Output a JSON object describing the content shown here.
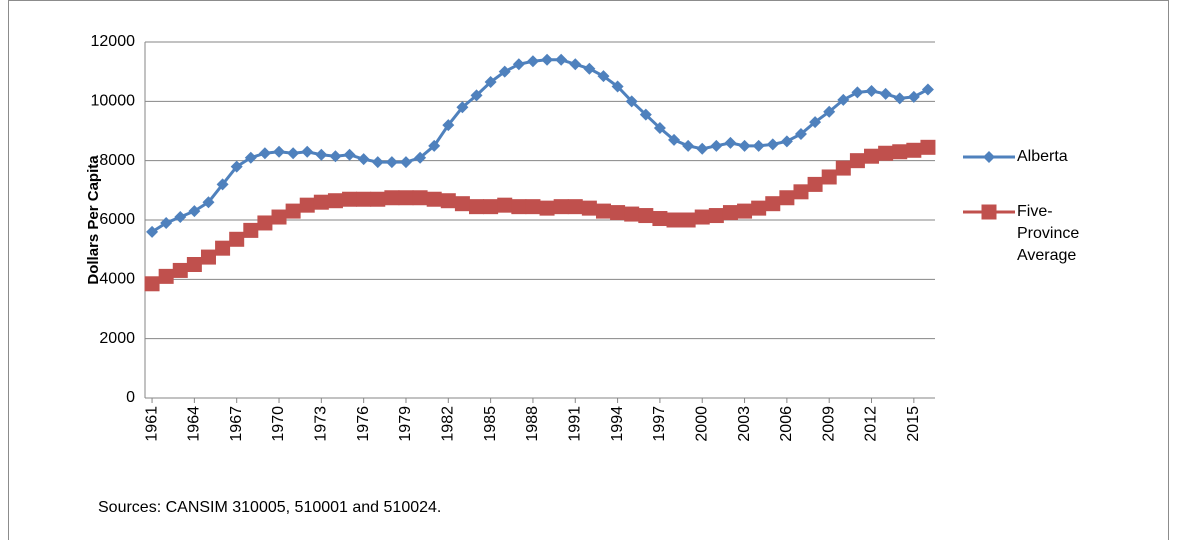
{
  "chart_data": {
    "type": "line",
    "y_label": "Dollars Per Capita",
    "note": "Sources: CANSIM 310005, 510001 and 510024.",
    "x": [
      1961,
      1962,
      1963,
      1964,
      1965,
      1966,
      1967,
      1968,
      1969,
      1970,
      1971,
      1972,
      1973,
      1974,
      1975,
      1976,
      1977,
      1978,
      1979,
      1980,
      1981,
      1982,
      1983,
      1984,
      1985,
      1986,
      1987,
      1988,
      1989,
      1990,
      1991,
      1992,
      1993,
      1994,
      1995,
      1996,
      1997,
      1998,
      1999,
      2000,
      2001,
      2002,
      2003,
      2004,
      2005,
      2006,
      2007,
      2008,
      2009,
      2010,
      2011,
      2012,
      2013,
      2014,
      2015,
      2016
    ],
    "xlim": [
      1960.5,
      2016.5
    ],
    "xticks": [
      1961,
      1964,
      1967,
      1970,
      1973,
      1976,
      1979,
      1982,
      1985,
      1988,
      1991,
      1994,
      1997,
      2000,
      2003,
      2006,
      2009,
      2012,
      2015
    ],
    "ylim": [
      0,
      12000
    ],
    "yticks": [
      0,
      2000,
      4000,
      6000,
      8000,
      10000,
      12000
    ],
    "grid": true,
    "legend": "right",
    "series": [
      {
        "name": "Alberta",
        "color": "#4f81bd",
        "marker": "diamond",
        "values": [
          5600,
          5900,
          6100,
          6300,
          6600,
          7200,
          7800,
          8100,
          8250,
          8300,
          8250,
          8300,
          8200,
          8150,
          8200,
          8050,
          7950,
          7950,
          7950,
          8100,
          8500,
          9200,
          9800,
          10200,
          10650,
          11000,
          11250,
          11350,
          11400,
          11400,
          11250,
          11100,
          10850,
          10500,
          10000,
          9550,
          9100,
          8700,
          8500,
          8400,
          8500,
          8600,
          8500,
          8500,
          8550,
          8650,
          8900,
          9300,
          9650,
          10050,
          10300,
          10350,
          10250,
          10100,
          10150,
          10400
        ]
      },
      {
        "name": "Five-Province Average",
        "color": "#c0504d",
        "marker": "square",
        "values": [
          3850,
          4100,
          4300,
          4500,
          4750,
          5050,
          5350,
          5650,
          5900,
          6100,
          6300,
          6500,
          6600,
          6650,
          6700,
          6700,
          6700,
          6750,
          6750,
          6750,
          6700,
          6650,
          6550,
          6450,
          6450,
          6500,
          6450,
          6450,
          6400,
          6450,
          6450,
          6400,
          6300,
          6250,
          6200,
          6150,
          6050,
          6000,
          6000,
          6100,
          6150,
          6250,
          6300,
          6400,
          6550,
          6750,
          6950,
          7200,
          7450,
          7750,
          8000,
          8150,
          8250,
          8300,
          8350,
          8450
        ]
      }
    ]
  }
}
